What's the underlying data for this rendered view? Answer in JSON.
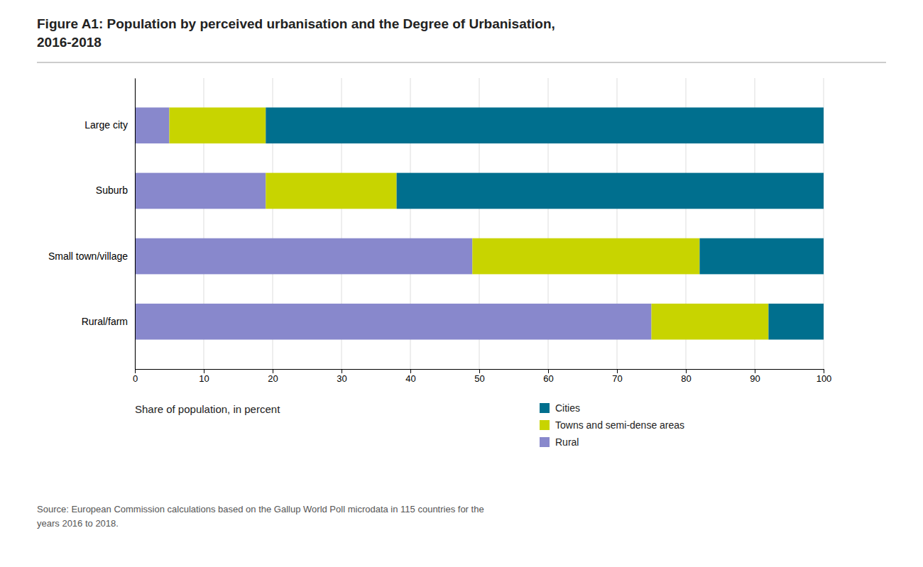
{
  "chart_data": {
    "type": "bar",
    "orientation": "horizontal",
    "stacked": true,
    "title": "Figure A1: Population by perceived urbanisation and the Degree of Urbanisation,\n2016-2018",
    "x_label": "Share of population, in percent",
    "source": "Source: European Commission calculations based on the Gallup World Poll microdata in 115 countries for the\nyears 2016 to 2018.",
    "categories": [
      "Large city",
      "Suburb",
      "Small town/village",
      "Rural/farm"
    ],
    "series": [
      {
        "name": "Rural",
        "color": "#8888cc",
        "values": [
          5,
          19,
          49,
          75
        ]
      },
      {
        "name": "Towns and semi-dense areas",
        "color": "#c8d400",
        "values": [
          14,
          19,
          33,
          17
        ]
      },
      {
        "name": "Cities",
        "color": "#006f8e",
        "values": [
          81,
          62,
          18,
          8
        ]
      }
    ],
    "xlim": [
      0,
      100
    ],
    "xticks": [
      0,
      10,
      20,
      30,
      40,
      50,
      60,
      70,
      80,
      90,
      100
    ],
    "grid": true,
    "legend": "bottom"
  }
}
